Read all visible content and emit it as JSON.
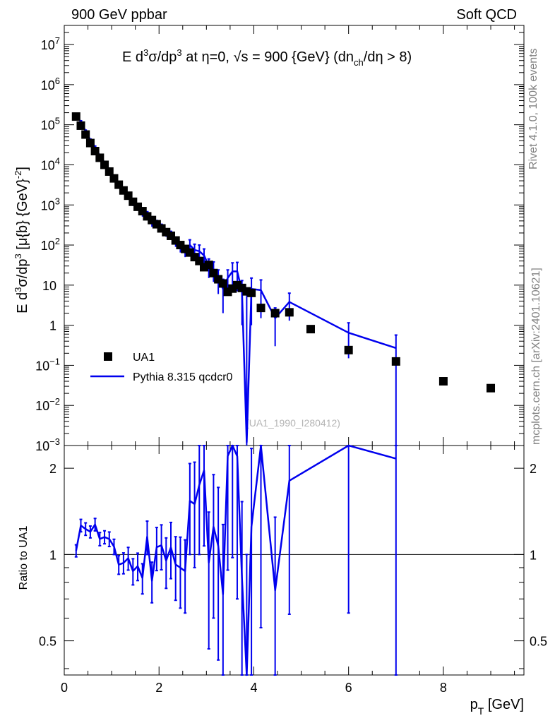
{
  "header": {
    "left": "900 GeV ppbar",
    "right": "Soft QCD"
  },
  "side_labels": {
    "rivet": "Rivet 4.1.0,  100k events",
    "site": "mcplots.cern.ch [arXiv:2401.10621]"
  },
  "plot_title": {
    "prefix": "E  d",
    "sup3a": "3",
    "mid1": "σ/dp",
    "sup3b": "3",
    "mid2": " at η=0, √s = 900 {GeV} (dn",
    "sub_ch": "ch",
    "end": "/dη > 8)"
  },
  "watermark": "(UA1_1990_I280412)",
  "y_label_main": {
    "a": "E d",
    "sup3a": "3",
    "b": "σ/dp",
    "sup3b": "3",
    "c": " [μ{b} {GeV}",
    "sup": "-2",
    "d": "]"
  },
  "y_label_ratio": "Ratio to UA1",
  "x_label": {
    "p": "p",
    "sub": "T",
    "rest": " [GeV]"
  },
  "legend": {
    "data": "UA1",
    "mc": "Pythia 8.315 qcdcr0"
  },
  "colors": {
    "data": "#000000",
    "mc": "#0000ee"
  },
  "chart_data": {
    "type": "scatter",
    "x_label": "p_T [GeV]",
    "xlim": [
      0,
      9.7
    ],
    "x_ticks": [
      0,
      2,
      4,
      6,
      8
    ],
    "main": {
      "y_scale": "log",
      "ylim": [
        0.001,
        30000000
      ],
      "y_ticks": [
        {
          "v": 0.001,
          "label": "10",
          "sup": "−3"
        },
        {
          "v": 0.01,
          "label": "10",
          "sup": "−2"
        },
        {
          "v": 0.1,
          "label": "10",
          "sup": "−1"
        },
        {
          "v": 1,
          "label": "1",
          "sup": ""
        },
        {
          "v": 10,
          "label": "10",
          "sup": ""
        },
        {
          "v": 100,
          "label": "10",
          "sup": "2"
        },
        {
          "v": 1000,
          "label": "10",
          "sup": "3"
        },
        {
          "v": 10000,
          "label": "10",
          "sup": "4"
        },
        {
          "v": 100000,
          "label": "10",
          "sup": "5"
        },
        {
          "v": 1000000,
          "label": "10",
          "sup": "6"
        },
        {
          "v": 10000000,
          "label": "10",
          "sup": "7"
        }
      ]
    },
    "ratio": {
      "y_scale": "log",
      "ylim": [
        0.38,
        2.4
      ],
      "y_ticks": [
        {
          "v": 0.5,
          "label": "0.5"
        },
        {
          "v": 1,
          "label": "1"
        },
        {
          "v": 2,
          "label": "2"
        }
      ],
      "reference_line": 1
    },
    "series": [
      {
        "name": "UA1",
        "style": "markers",
        "x": [
          0.25,
          0.35,
          0.45,
          0.55,
          0.65,
          0.75,
          0.85,
          0.95,
          1.05,
          1.15,
          1.25,
          1.35,
          1.45,
          1.55,
          1.65,
          1.75,
          1.85,
          1.95,
          2.05,
          2.15,
          2.25,
          2.35,
          2.45,
          2.55,
          2.65,
          2.75,
          2.85,
          2.95,
          3.05,
          3.15,
          3.25,
          3.35,
          3.45,
          3.55,
          3.65,
          3.75,
          3.85,
          3.95,
          4.15,
          4.45,
          4.75,
          5.2,
          6.0,
          7.0,
          8.0,
          9.0
        ],
        "y": [
          160000,
          95000,
          57000,
          35000,
          22000,
          15000,
          10000,
          6800,
          4600,
          3200,
          2300,
          1700,
          1200,
          900,
          700,
          520,
          420,
          330,
          260,
          210,
          170,
          130,
          100,
          80,
          65,
          50,
          40,
          28,
          32,
          20,
          14,
          11,
          6.8,
          8.2,
          10,
          8.5,
          7,
          6.4,
          2.7,
          2,
          2.1,
          0.8,
          0.24,
          0.125,
          0.04,
          0.027
        ]
      },
      {
        "name": "Pythia 8.315 qcdcr0",
        "style": "line",
        "x": [
          0.25,
          0.35,
          0.45,
          0.55,
          0.65,
          0.75,
          0.85,
          0.95,
          1.05,
          1.15,
          1.25,
          1.35,
          1.45,
          1.55,
          1.65,
          1.75,
          1.85,
          1.95,
          2.05,
          2.15,
          2.25,
          2.35,
          2.45,
          2.55,
          2.65,
          2.75,
          2.85,
          2.95,
          3.05,
          3.15,
          3.25,
          3.35,
          3.45,
          3.55,
          3.65,
          3.75,
          3.85,
          3.95,
          4.15,
          4.45,
          4.75,
          6.0,
          7.0
        ],
        "y": [
          165000,
          120000,
          70000,
          42000,
          28000,
          17000,
          11500,
          7700,
          4900,
          2950,
          2150,
          1650,
          1050,
          820,
          580,
          600,
          340,
          350,
          280,
          200,
          180,
          120,
          90,
          70,
          100,
          75,
          70,
          55,
          30,
          25,
          15,
          8,
          15,
          22,
          22,
          7,
          0.0012,
          8,
          7.5,
          1.5,
          3.8,
          0.65,
          0.27
        ],
        "err": [
          8000,
          6000,
          3500,
          2000,
          1400,
          900,
          600,
          450,
          300,
          220,
          180,
          150,
          110,
          90,
          70,
          80,
          55,
          60,
          50,
          40,
          40,
          30,
          25,
          20,
          35,
          30,
          30,
          25,
          15,
          13,
          9,
          6,
          9,
          14,
          15,
          6,
          7,
          7,
          6,
          1.2,
          2.5,
          0.5,
          0.3
        ]
      }
    ]
  }
}
